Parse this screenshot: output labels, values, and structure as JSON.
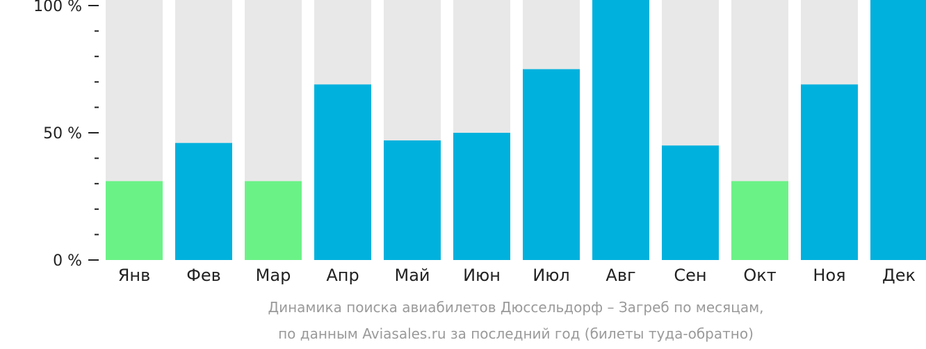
{
  "chart_data": {
    "type": "bar",
    "categories": [
      "Янв",
      "Фев",
      "Мар",
      "Апр",
      "Май",
      "Июн",
      "Июл",
      "Авг",
      "Сен",
      "Окт",
      "Ноя",
      "Дек"
    ],
    "values": [
      31,
      46,
      31,
      69,
      47,
      50,
      75,
      103,
      45,
      31,
      69,
      104
    ],
    "bar_status": [
      "low",
      "normal",
      "low",
      "normal",
      "normal",
      "normal",
      "normal",
      "normal",
      "normal",
      "low",
      "normal",
      "normal"
    ],
    "ylim": [
      0,
      100
    ],
    "y_ticks": [
      {
        "value": 0,
        "label": "0 %"
      },
      {
        "value": 50,
        "label": "50 %"
      },
      {
        "value": 100,
        "label": "100 %"
      }
    ],
    "minor_tick_step": 10,
    "grid": false,
    "colors": {
      "normal": "#00b1dd",
      "low": "#6bf287",
      "track": "#e8e8e8",
      "axis": "#222222"
    }
  },
  "caption": {
    "line1": "Динамика поиска авиабилетов Дюссельдорф – Загреб по месяцам,",
    "line2": "по данным Aviasales.ru за последний год (билеты туда-обратно)"
  }
}
